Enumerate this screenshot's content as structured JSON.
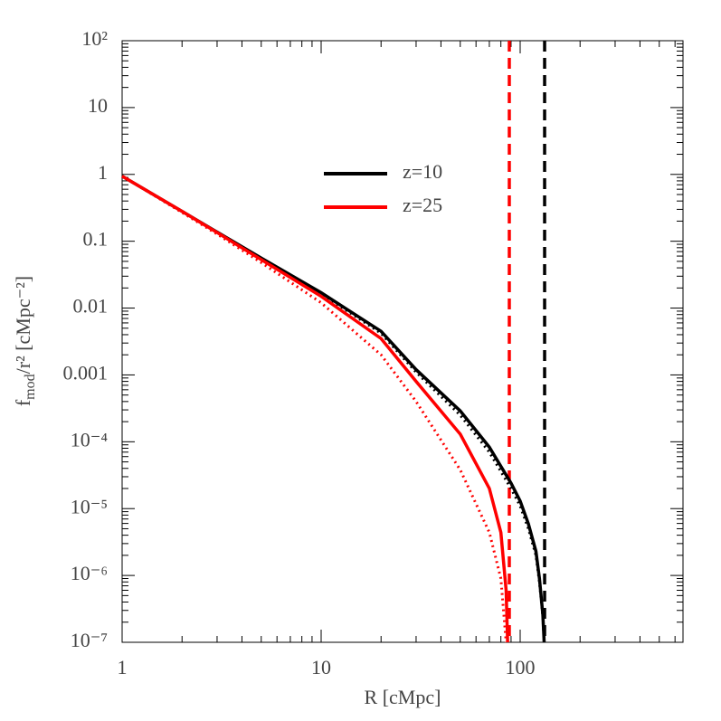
{
  "chart_data": {
    "type": "line",
    "xlabel": "R [cMpc]",
    "ylabel": [
      "f",
      "mod",
      "/r² [cMpc⁻²]"
    ],
    "xscale": "log",
    "yscale": "log",
    "xlim": [
      1,
      658
    ],
    "ylim": [
      1e-07,
      100
    ],
    "xticks": [
      1,
      10,
      100
    ],
    "yticks": [
      {
        "value": 1e-07,
        "label": "10⁻⁷"
      },
      {
        "value": 1e-06,
        "label": "10⁻⁶"
      },
      {
        "value": 1e-05,
        "label": "10⁻⁵"
      },
      {
        "value": 0.0001,
        "label": "10⁻⁴"
      },
      0.001,
      0.01,
      0.1,
      1,
      10,
      {
        "value": 100,
        "label": "10²"
      }
    ],
    "series": [
      {
        "name": "z=10",
        "color": "#000000",
        "style": "solid",
        "x": [
          1,
          2,
          3,
          5,
          10,
          20,
          30,
          50,
          70,
          90,
          100,
          110,
          120,
          125,
          130,
          132
        ],
        "values": [
          0.94,
          0.28,
          0.137,
          0.056,
          0.017,
          0.0045,
          0.0012,
          0.00029,
          8.3e-05,
          2.4e-05,
          1.3e-05,
          5.9e-06,
          2.3e-06,
          9e-07,
          2.6e-07,
          1e-07
        ]
      },
      {
        "color": "#000000",
        "style": "dotted",
        "x": [
          1,
          2,
          3,
          5,
          10,
          20,
          30,
          50,
          70,
          90,
          100,
          110,
          120,
          125,
          130,
          132
        ],
        "values": [
          0.94,
          0.28,
          0.136,
          0.055,
          0.0165,
          0.0042,
          0.0011,
          0.00025,
          7e-05,
          2e-05,
          1.1e-05,
          5e-06,
          2e-06,
          8e-07,
          2.4e-07,
          1e-07
        ]
      },
      {
        "name": "z=25",
        "color": "#ff0000",
        "style": "solid",
        "x": [
          1,
          2,
          3,
          5,
          10,
          20,
          30,
          50,
          70,
          80,
          85,
          86.5
        ],
        "values": [
          0.94,
          0.28,
          0.135,
          0.053,
          0.015,
          0.0035,
          0.0008,
          0.00013,
          2e-05,
          4.4e-06,
          6e-07,
          1e-07
        ]
      },
      {
        "color": "#ff0000",
        "style": "dotted",
        "x": [
          1,
          2,
          3,
          5,
          10,
          20,
          30,
          50,
          70,
          80,
          85
        ],
        "values": [
          0.94,
          0.27,
          0.128,
          0.048,
          0.012,
          0.002,
          0.0004,
          3.8e-05,
          4.4e-06,
          9e-07,
          1e-07
        ]
      }
    ],
    "vlines": [
      {
        "x": 132.7,
        "color": "#000000",
        "style": "dashed"
      },
      {
        "x": 88.2,
        "color": "#ff0000",
        "style": "dashed"
      }
    ]
  }
}
